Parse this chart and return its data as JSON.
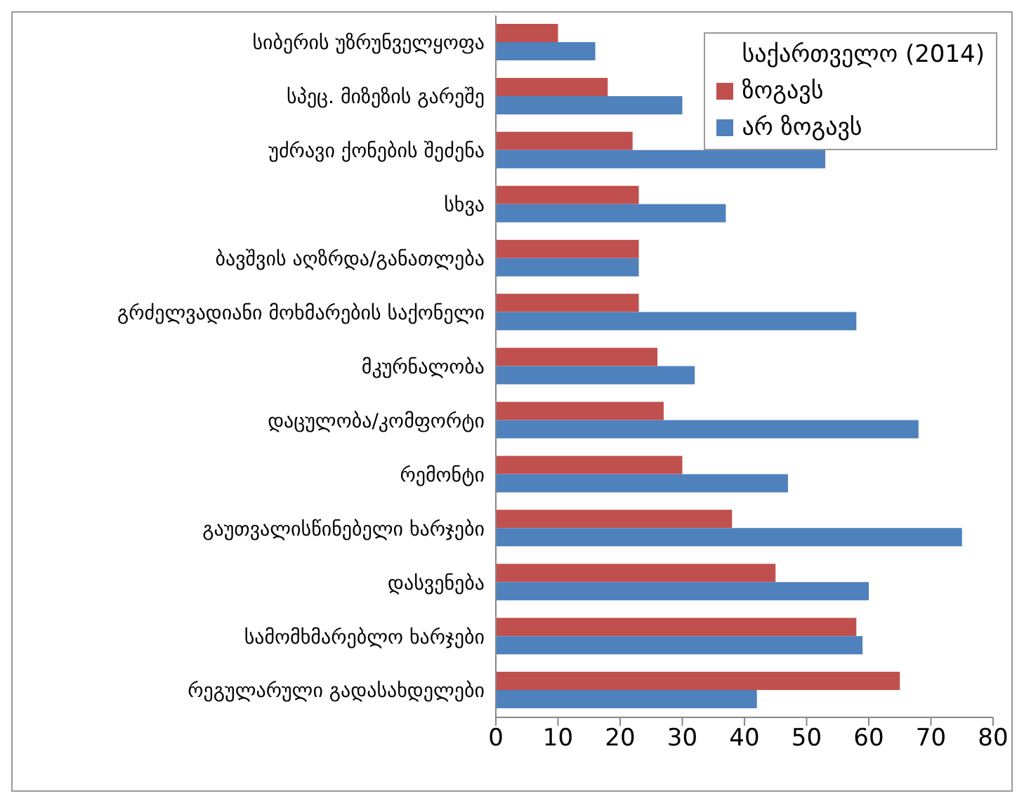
{
  "chart_data": {
    "type": "bar",
    "orientation": "horizontal",
    "legend_title": "საქართველო (2014)",
    "legend": "top right",
    "grid": false,
    "categories": [
      "სიბერის უზრუნველყოფა",
      "სპეც. მიზეზის გარეშე",
      "უძრავი ქონების შეძენა",
      "სხვა",
      "ბავშვის აღზრდა/განათლება",
      "გრძელვადიანი მოხმარების საქონელი",
      "მკურნალობა",
      "დაცულობა/კომფორტი",
      "რემონტი",
      "გაუთვალისწინებელი ხარჯები",
      "დასვენება",
      "სამომხმარებლო ხარჯები",
      "რეგულარული გადასახდელები"
    ],
    "series": [
      {
        "name": "ზოგავს",
        "color": "#c0504d",
        "values": [
          10,
          18,
          22,
          23,
          23,
          23,
          26,
          27,
          30,
          38,
          45,
          58,
          65
        ]
      },
      {
        "name": "არ ზოგავს",
        "color": "#4f81bd",
        "values": [
          16,
          30,
          53,
          37,
          23,
          58,
          32,
          68,
          47,
          75,
          60,
          59,
          42
        ]
      }
    ],
    "xlim": [
      0,
      80
    ],
    "xticks": [
      0,
      10,
      20,
      30,
      40,
      50,
      60,
      70,
      80
    ]
  }
}
